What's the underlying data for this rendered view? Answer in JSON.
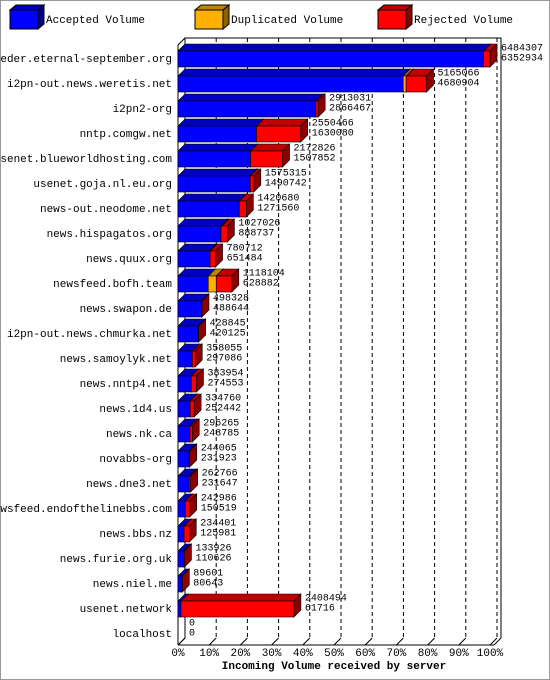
{
  "chart_data": {
    "type": "bar",
    "orientation": "horizontal",
    "stacked": true,
    "three_d": true,
    "x_label": "Incoming Volume received by server",
    "categories": [
      "feeder.eternal-september.org",
      "i2pn-out.news.weretis.net",
      "i2pn2-org",
      "nntp.comgw.net",
      "usenet.blueworldhosting.com",
      "usenet.goja.nl.eu.org",
      "news-out.neodome.net",
      "news.hispagatos.org",
      "news.quux.org",
      "newsfeed.bofh.team",
      "news.swapon.de",
      "i2pn-out.news.chmurka.net",
      "news.samoylyk.net",
      "news.nntp4.net",
      "news.1d4.us",
      "news.nk.ca",
      "novabbs-org",
      "news.dne3.net",
      "newsfeed.endofthelinebbs.com",
      "news.bbs.nz",
      "news.furie.org.uk",
      "news.niel.me",
      "usenet.network",
      "localhost"
    ],
    "series": [
      {
        "name": "Accepted Volume",
        "color": "#0000ff",
        "values": [
          6352934,
          4680904,
          2866467,
          1630080,
          1507852,
          1490742,
          1271560,
          888737,
          651484,
          628882,
          488644,
          420125,
          297086,
          274553,
          252442,
          248785,
          231923,
          231647,
          150519,
          125981,
          110626,
          80643,
          61716,
          0
        ]
      },
      {
        "name": "Duplicated Volume",
        "color": "#ffb000",
        "values": [
          0,
          60000,
          0,
          0,
          0,
          10000,
          0,
          20000,
          15000,
          166000,
          0,
          0,
          0,
          0,
          0,
          0,
          0,
          0,
          0,
          0,
          0,
          0,
          0,
          0
        ]
      },
      {
        "name": "Rejected Volume",
        "color": "#ff0000",
        "values": [
          131373,
          424162,
          46564,
          920386,
          664974,
          74573,
          149120,
          118289,
          114228,
          323222,
          9684,
          8720,
          60969,
          109401,
          82318,
          47480,
          12142,
          31119,
          92467,
          108420,
          23300,
          8958,
          2346778,
          0
        ]
      }
    ],
    "totals": [
      6484307,
      5165066,
      2913031,
      2550466,
      2172826,
      1575315,
      1420680,
      1027026,
      780712,
      1118104,
      498328,
      428845,
      358055,
      383954,
      334760,
      296265,
      244065,
      262766,
      242986,
      234401,
      133926,
      89601,
      2408494,
      0
    ],
    "xlim": [
      0,
      6484307
    ],
    "xticks": [
      {
        "value": 0,
        "label": "0%"
      },
      {
        "value": 648430.7,
        "label": "10%"
      },
      {
        "value": 1296861.4,
        "label": "20%"
      },
      {
        "value": 1945292.1,
        "label": "30%"
      },
      {
        "value": 2593722.8,
        "label": "40%"
      },
      {
        "value": 3242153.5,
        "label": "50%"
      },
      {
        "value": 3890584.2,
        "label": "60%"
      },
      {
        "value": 4539014.9,
        "label": "70%"
      },
      {
        "value": 5187445.6,
        "label": "80%"
      },
      {
        "value": 5835876.3,
        "label": "90%"
      },
      {
        "value": 6484307,
        "label": "100%"
      }
    ],
    "grid": true
  }
}
